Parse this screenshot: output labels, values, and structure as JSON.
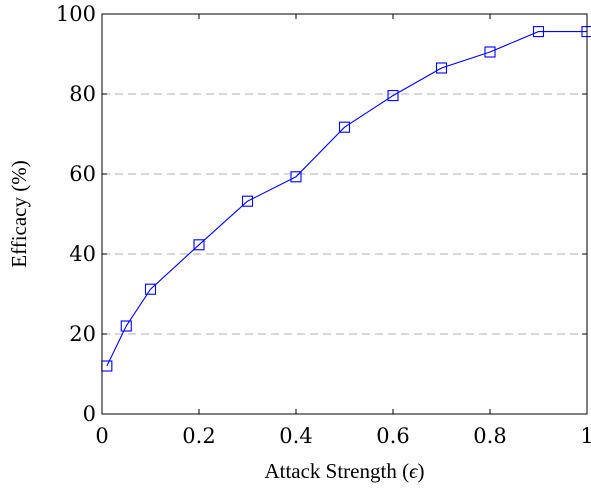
{
  "chart_data": {
    "type": "line",
    "xlabel_text": "Attack Strength (",
    "xlabel_symbol": "ϵ",
    "xlabel_close": ")",
    "ylabel": "Efficacy (%)",
    "xlim": [
      0,
      1
    ],
    "ylim": [
      0,
      100
    ],
    "x_ticks": [
      {
        "value": 0,
        "label": "0"
      },
      {
        "value": 0.2,
        "label": "0.2"
      },
      {
        "value": 0.4,
        "label": "0.4"
      },
      {
        "value": 0.6,
        "label": "0.6"
      },
      {
        "value": 0.8,
        "label": "0.8"
      },
      {
        "value": 1,
        "label": "1"
      }
    ],
    "y_ticks": [
      {
        "value": 0,
        "label": "0"
      },
      {
        "value": 20,
        "label": "20"
      },
      {
        "value": 40,
        "label": "40"
      },
      {
        "value": 60,
        "label": "60"
      },
      {
        "value": 80,
        "label": "80"
      },
      {
        "value": 100,
        "label": "100"
      }
    ],
    "grid": "horizontal dashed",
    "series": [
      {
        "color": "#0000ff",
        "marker": "open-square",
        "x": [
          0.01,
          0.05,
          0.1,
          0.2,
          0.3,
          0.4,
          0.5,
          0.6,
          0.7,
          0.8,
          0.9,
          1.0
        ],
        "y": [
          12,
          22,
          31.2,
          42.3,
          53.2,
          59.3,
          71.7,
          79.6,
          86.5,
          90.5,
          95.6,
          95.6
        ]
      }
    ]
  }
}
